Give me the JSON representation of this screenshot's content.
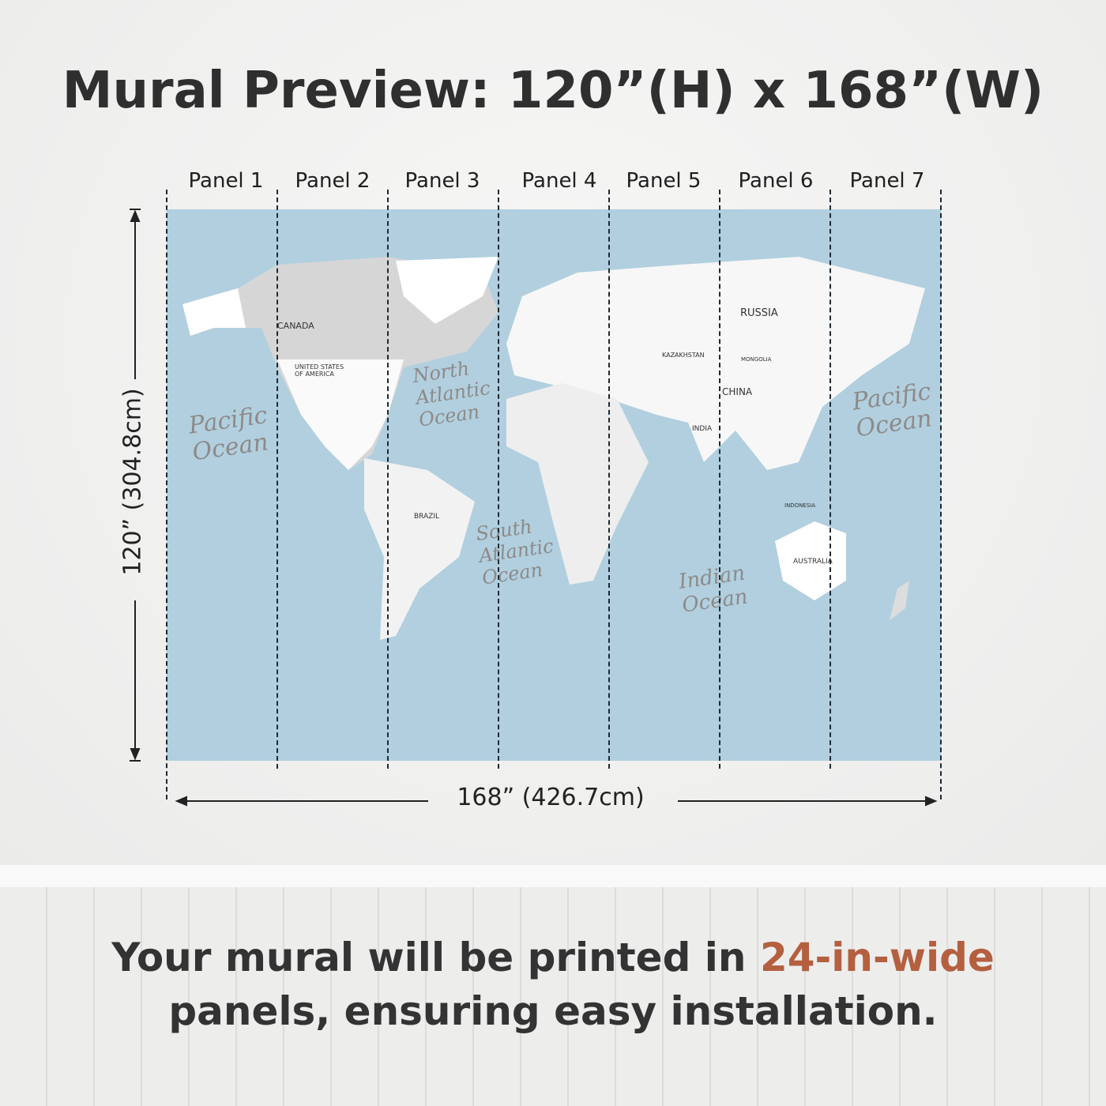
{
  "title": "Mural Preview: 120”(H) x 168”(W)",
  "panels": [
    "Panel 1",
    "Panel 2",
    "Panel 3",
    "Panel 4",
    "Panel 5",
    "Panel 6",
    "Panel 7"
  ],
  "height_label": "120” (304.8cm)",
  "width_label": "168” (426.7cm)",
  "map": {
    "background_color": "#b1cfdf",
    "countries": {
      "canada": "CANADA",
      "usa": "UNITED STATES OF AMERICA",
      "russia": "RUSSIA",
      "china": "CHINA",
      "india": "INDIA",
      "kazakhstan": "KAZAKHSTAN",
      "mongolia": "MONGOLIA",
      "brazil": "BRAZIL",
      "australia": "AUSTRALIA",
      "indonesia": "INDONESIA"
    },
    "oceans": {
      "pacific": "Pacific Ocean",
      "north_atlantic": "North Atlantic Ocean",
      "south_atlantic": "South Atlantic Ocean",
      "indian": "Indian Ocean"
    }
  },
  "footer": {
    "part1": "Your mural will be printed in ",
    "highlight": "24-in-wide",
    "part2": "panels, ensuring easy installation.",
    "accent_color": "#b4603f"
  }
}
